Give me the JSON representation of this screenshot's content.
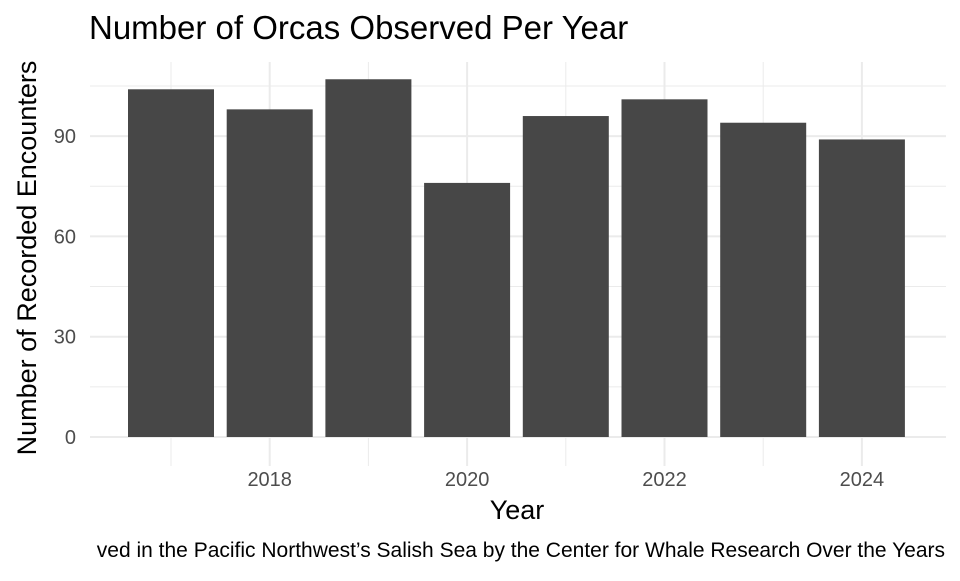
{
  "chart_data": {
    "type": "bar",
    "title": "Number of Orcas Observed Per Year",
    "xlabel": "Year",
    "ylabel": "Number of Recorded Encounters",
    "caption": "ved in the Pacific Northwest’s Salish Sea by the Center for Whale Research Over the Years",
    "categories": [
      2017,
      2018,
      2019,
      2020,
      2021,
      2022,
      2023,
      2024
    ],
    "values": [
      104,
      98,
      107,
      76,
      96,
      101,
      94,
      89
    ],
    "x_ticks": [
      "2018",
      "2020",
      "2022",
      "2024"
    ],
    "y_ticks": [
      "0",
      "30",
      "60",
      "90"
    ],
    "ylim": [
      0,
      112
    ],
    "grid": true,
    "bar_color": "#474747",
    "grid_color": "#ebebeb",
    "text_color": "#4d4d4d"
  }
}
